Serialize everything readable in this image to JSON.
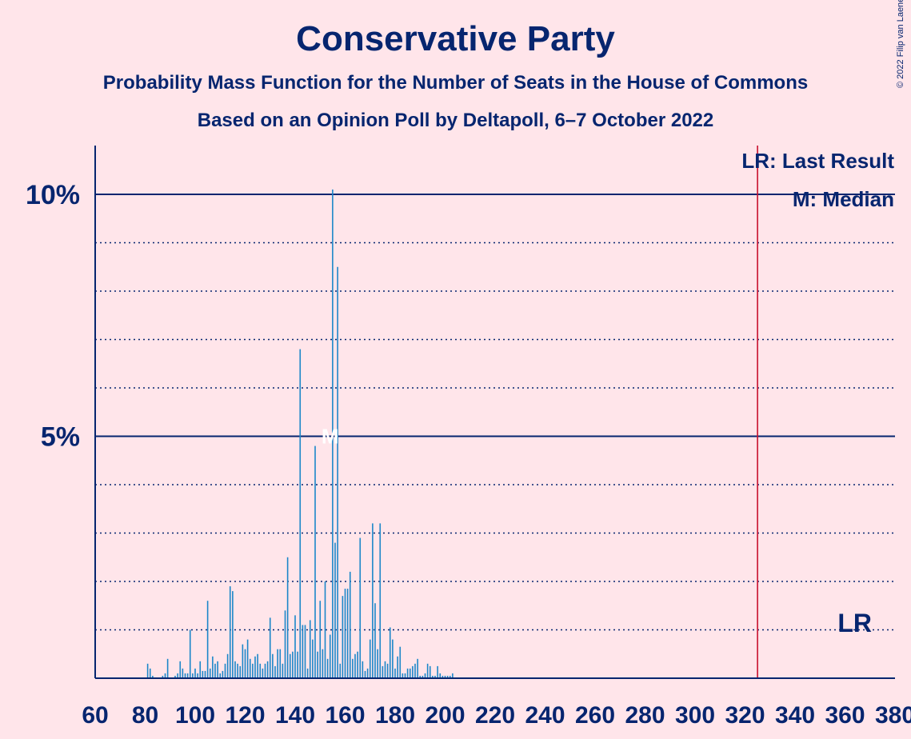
{
  "chart_data": {
    "type": "bar",
    "title": "Conservative Party",
    "subtitle": "Probability Mass Function for the Number of Seats in the House of Commons",
    "subtitle2": "Based on an Opinion Poll by Deltapoll, 6–7 October 2022",
    "copyright": "© 2022 Filip van Laenen",
    "xlabel": "",
    "ylabel": "",
    "xlim": [
      60,
      380
    ],
    "ylim": [
      0,
      11
    ],
    "x_ticks": [
      "60",
      "80",
      "100",
      "120",
      "140",
      "160",
      "180",
      "200",
      "220",
      "240",
      "260",
      "280",
      "300",
      "320",
      "340",
      "360",
      "380"
    ],
    "y_ticks": [
      "5%",
      "10%"
    ],
    "legend": {
      "lr": "LR: Last Result",
      "m": "M: Median"
    },
    "last_result_seats": 325,
    "last_result_marker": "LR",
    "median_seats": 154,
    "median_marker": "M",
    "bar_color": "#1C87C9",
    "lr_color": "#C8102E",
    "seats": [
      81,
      82,
      83,
      87,
      88,
      89,
      92,
      93,
      94,
      95,
      96,
      97,
      98,
      99,
      100,
      101,
      102,
      103,
      104,
      105,
      106,
      107,
      108,
      109,
      110,
      111,
      112,
      113,
      114,
      115,
      116,
      117,
      118,
      119,
      120,
      121,
      122,
      123,
      124,
      125,
      126,
      127,
      128,
      129,
      130,
      131,
      132,
      133,
      134,
      135,
      136,
      137,
      138,
      139,
      140,
      141,
      142,
      143,
      144,
      145,
      146,
      147,
      148,
      149,
      150,
      151,
      152,
      153,
      154,
      155,
      156,
      157,
      158,
      159,
      160,
      161,
      162,
      163,
      164,
      165,
      166,
      167,
      168,
      169,
      170,
      171,
      172,
      173,
      174,
      175,
      176,
      177,
      178,
      179,
      180,
      181,
      182,
      183,
      184,
      185,
      186,
      187,
      188,
      189,
      190,
      191,
      192,
      193,
      194,
      195,
      196,
      197,
      198,
      199,
      200,
      201,
      202,
      203
    ],
    "values": [
      0.3,
      0.2,
      0.05,
      0.05,
      0.1,
      0.4,
      0.05,
      0.1,
      0.35,
      0.2,
      0.1,
      0.1,
      1.0,
      0.1,
      0.2,
      0.1,
      0.35,
      0.15,
      0.15,
      1.6,
      0.2,
      0.45,
      0.3,
      0.35,
      0.1,
      0.15,
      0.3,
      0.5,
      1.9,
      1.8,
      0.35,
      0.3,
      0.25,
      0.7,
      0.6,
      0.8,
      0.4,
      0.3,
      0.45,
      0.5,
      0.3,
      0.2,
      0.3,
      0.35,
      1.25,
      0.5,
      0.25,
      0.6,
      0.6,
      0.3,
      1.4,
      2.5,
      0.5,
      0.55,
      1.3,
      0.55,
      6.8,
      1.1,
      1.1,
      0.2,
      1.2,
      0.8,
      4.8,
      0.55,
      1.6,
      0.6,
      2.0,
      0.4,
      0.9,
      10.1,
      2.8,
      8.5,
      0.3,
      1.7,
      1.85,
      1.85,
      2.2,
      0.4,
      0.5,
      0.55,
      2.9,
      0.35,
      0.15,
      0.2,
      0.8,
      3.2,
      1.55,
      0.6,
      3.2,
      0.25,
      0.35,
      0.3,
      1.05,
      0.8,
      0.2,
      0.45,
      0.65,
      0.1,
      0.1,
      0.2,
      0.2,
      0.25,
      0.3,
      0.4,
      0.05,
      0.05,
      0.1,
      0.3,
      0.25,
      0.05,
      0.05,
      0.25,
      0.1,
      0.05,
      0.05,
      0.05,
      0.05,
      0.1
    ]
  }
}
